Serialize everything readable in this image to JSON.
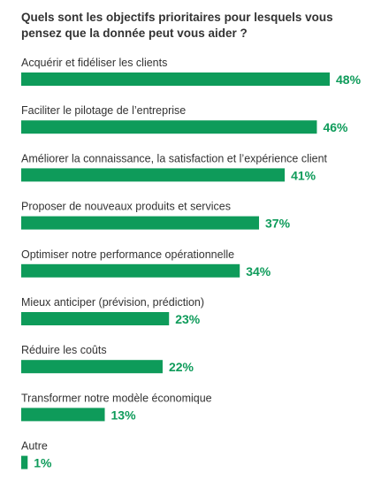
{
  "chart_data": {
    "type": "bar",
    "orientation": "horizontal",
    "title": "Quels sont les objectifs prioritaires pour lesquels vous pensez que la donnée peut vous aider ?",
    "unit": "%",
    "xlim": [
      0,
      48
    ],
    "grid": false,
    "legend": "none",
    "bar_color": "#0e9b5a",
    "label_color": "#0e9b5a",
    "categories": [
      "Acquérir et fidéliser les clients",
      "Faciliter le pilotage de l’entreprise",
      "Améliorer la connaissance, la satisfaction et l’expérience client",
      "Proposer de nouveaux produits et services",
      "Optimiser notre performance opérationnelle",
      "Mieux anticiper (prévision, prédiction)",
      "Réduire les coûts",
      "Transformer notre modèle économique",
      "Autre"
    ],
    "values": [
      48,
      46,
      41,
      37,
      34,
      23,
      22,
      13,
      1
    ],
    "value_labels": [
      "48%",
      "46%",
      "41%",
      "37%",
      "34%",
      "23%",
      "22%",
      "13%",
      "1%"
    ]
  }
}
